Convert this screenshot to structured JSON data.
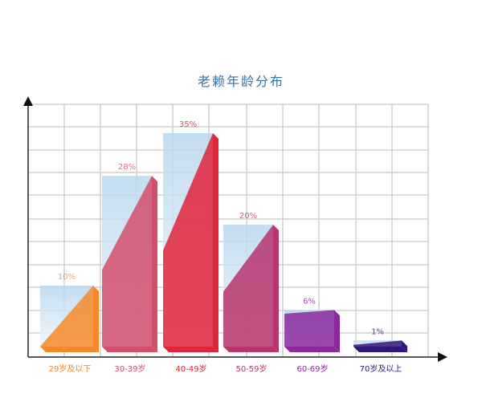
{
  "chart_data": {
    "type": "bar",
    "title": "老赖年龄分布",
    "categories": [
      "29岁及以下",
      "30-39岁",
      "40-49岁",
      "50-59岁",
      "60-69岁",
      "70岁及以上"
    ],
    "values": [
      10,
      28,
      35,
      20,
      6,
      1
    ],
    "data_labels": [
      "10%",
      "28%",
      "35%",
      "20%",
      "6%",
      "1%"
    ],
    "unit": "%",
    "grid": true,
    "colors": [
      "#f5892a",
      "#d24f6c",
      "#e0253a",
      "#b8356d",
      "#8a2a9c",
      "#33157a"
    ],
    "back_color": "#b9d7ee"
  }
}
